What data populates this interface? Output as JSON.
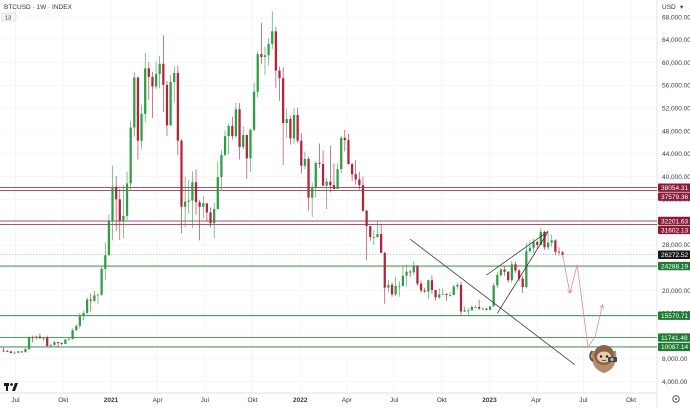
{
  "header": {
    "title": "BTCUSD · 1W · INDEX",
    "indicator_badge": "13",
    "currency": "USD"
  },
  "colors": {
    "bull": "#2e9e44",
    "bear": "#b3243a",
    "resistance_zone": "#8b1d3a",
    "support_line": "#1f7a33",
    "trendline": "#3a3a3a",
    "projection": "#e38a9a",
    "current_price": "#1a1a1a"
  },
  "icons": {
    "logo": "tradingview-logo-icon",
    "settings": "gear-icon",
    "mascot": "sloth-icon"
  },
  "chart_data": {
    "type": "candlestick",
    "title": "BTCUSD · 1W · INDEX",
    "x_ticks": [
      "Jul",
      "Okt",
      "2021",
      "Apr",
      "Jul",
      "Okt",
      "2022",
      "Apr",
      "Jul",
      "Okt",
      "2023",
      "Apr",
      "Jul",
      "Okt"
    ],
    "x_tick_dates": [
      "2020-07-01",
      "2020-10-01",
      "2021-01-01",
      "2021-04-01",
      "2021-07-01",
      "2021-10-01",
      "2022-01-01",
      "2022-04-01",
      "2022-07-01",
      "2022-10-01",
      "2023-01-01",
      "2023-04-01",
      "2023-07-01",
      "2023-10-01"
    ],
    "y_ticks": [
      4000,
      8000,
      12000,
      16000,
      20000,
      24000,
      28000,
      32000,
      36000,
      40000,
      44000,
      48000,
      52000,
      56000,
      60000,
      64000,
      68000
    ],
    "y_unit": "USD",
    "ylim": [
      2000,
      71000
    ],
    "price_labels": [
      {
        "value": "38054.31",
        "style": "resistance"
      },
      {
        "value": "37579.36",
        "style": "resistance"
      },
      {
        "value": "32201.63",
        "style": "resistance"
      },
      {
        "value": "31602.13",
        "style": "resistance"
      },
      {
        "value": "26272.52",
        "style": "current"
      },
      {
        "value": "24288.19",
        "style": "support"
      },
      {
        "value": "15570.71",
        "style": "support"
      },
      {
        "value": "11741.48",
        "style": "support"
      },
      {
        "value": "10087.14",
        "style": "support"
      }
    ],
    "horizontal_levels": [
      38054.31,
      37579.36,
      32201.63,
      31602.13,
      24288.19,
      15570.71,
      11741.48,
      10087.14
    ],
    "current_price": 26272.52,
    "candles": [
      [
        "2020-06-08",
        9450,
        9990,
        9150,
        9380
      ],
      [
        "2020-06-15",
        9380,
        9560,
        9170,
        9300
      ],
      [
        "2020-06-22",
        9300,
        9390,
        8950,
        9020
      ],
      [
        "2020-06-29",
        9020,
        9310,
        8900,
        9070
      ],
      [
        "2020-07-06",
        9070,
        9450,
        9060,
        9300
      ],
      [
        "2020-07-13",
        9300,
        9330,
        9050,
        9170
      ],
      [
        "2020-07-20",
        9170,
        9930,
        9140,
        9700
      ],
      [
        "2020-07-27",
        9700,
        12000,
        9650,
        11800
      ],
      [
        "2020-08-03",
        11800,
        12100,
        10900,
        11680
      ],
      [
        "2020-08-10",
        11680,
        12100,
        11300,
        11900
      ],
      [
        "2020-08-17",
        11900,
        12470,
        11450,
        11640
      ],
      [
        "2020-08-24",
        11640,
        11850,
        11130,
        11700
      ],
      [
        "2020-08-31",
        11700,
        12080,
        10100,
        10280
      ],
      [
        "2020-09-07",
        10280,
        10650,
        9900,
        10440
      ],
      [
        "2020-09-14",
        10440,
        11100,
        10300,
        10940
      ],
      [
        "2020-09-21",
        10940,
        10990,
        10150,
        10760
      ],
      [
        "2020-09-28",
        10760,
        10930,
        10370,
        10600
      ],
      [
        "2020-10-05",
        10600,
        11480,
        10550,
        11370
      ],
      [
        "2020-10-12",
        11370,
        11720,
        11230,
        11500
      ],
      [
        "2020-10-19",
        11500,
        13350,
        11400,
        13030
      ],
      [
        "2020-10-26",
        13030,
        14000,
        12900,
        13800
      ],
      [
        "2020-11-02",
        13800,
        15950,
        13300,
        15480
      ],
      [
        "2020-11-09",
        15480,
        16480,
        14800,
        16050
      ],
      [
        "2020-11-16",
        16050,
        18800,
        15900,
        18400
      ],
      [
        "2020-11-23",
        18400,
        19500,
        16300,
        18200
      ],
      [
        "2020-11-30",
        18200,
        19900,
        18000,
        19150
      ],
      [
        "2020-12-07",
        19150,
        19400,
        17600,
        19270
      ],
      [
        "2020-12-14",
        19270,
        24300,
        19000,
        23800
      ],
      [
        "2020-12-21",
        23800,
        28400,
        21800,
        26200
      ],
      [
        "2020-12-28",
        26200,
        33300,
        26000,
        32200
      ],
      [
        "2021-01-04",
        32200,
        41900,
        28800,
        38200
      ],
      [
        "2021-01-11",
        38200,
        40100,
        30400,
        36000
      ],
      [
        "2021-01-18",
        36000,
        37800,
        28900,
        32200
      ],
      [
        "2021-01-25",
        32200,
        38500,
        29200,
        33100
      ],
      [
        "2021-02-01",
        33100,
        40900,
        32300,
        38800
      ],
      [
        "2021-02-08",
        38800,
        49700,
        37500,
        48600
      ],
      [
        "2021-02-15",
        48600,
        58300,
        47000,
        57400
      ],
      [
        "2021-02-22",
        57400,
        57500,
        43000,
        46300
      ],
      [
        "2021-03-01",
        46300,
        52600,
        44900,
        51000
      ],
      [
        "2021-03-08",
        51000,
        61700,
        49500,
        59000
      ],
      [
        "2021-03-15",
        59000,
        60100,
        53500,
        57500
      ],
      [
        "2021-03-22",
        57500,
        58400,
        50300,
        55800
      ],
      [
        "2021-03-29",
        55800,
        60200,
        55400,
        58000
      ],
      [
        "2021-04-05",
        58000,
        61200,
        55500,
        59800
      ],
      [
        "2021-04-12",
        59800,
        64800,
        51300,
        56100
      ],
      [
        "2021-04-19",
        56100,
        56800,
        47100,
        49000
      ],
      [
        "2021-04-26",
        49000,
        57900,
        48900,
        56600
      ],
      [
        "2021-05-03",
        56600,
        59400,
        53000,
        58200
      ],
      [
        "2021-05-10",
        58200,
        59500,
        43800,
        46300
      ],
      [
        "2021-05-17",
        46300,
        46600,
        30000,
        34700
      ],
      [
        "2021-05-24",
        34700,
        40000,
        31100,
        35600
      ],
      [
        "2021-05-31",
        35600,
        39400,
        33500,
        35800
      ],
      [
        "2021-06-07",
        35800,
        40900,
        31000,
        39000
      ],
      [
        "2021-06-14",
        39000,
        41300,
        33300,
        35500
      ],
      [
        "2021-06-21",
        35500,
        35900,
        28800,
        34700
      ],
      [
        "2021-06-28",
        34700,
        36600,
        32700,
        35300
      ],
      [
        "2021-07-05",
        35300,
        35000,
        32100,
        33700
      ],
      [
        "2021-07-12",
        33700,
        34600,
        31100,
        31800
      ],
      [
        "2021-07-19",
        31800,
        35400,
        29200,
        34300
      ],
      [
        "2021-07-26",
        34300,
        42600,
        34200,
        39900
      ],
      [
        "2021-08-02",
        39900,
        44700,
        37600,
        43800
      ],
      [
        "2021-08-09",
        43800,
        48100,
        43600,
        47100
      ],
      [
        "2021-08-16",
        47100,
        49300,
        43900,
        48900
      ],
      [
        "2021-08-23",
        48900,
        50500,
        46500,
        47100
      ],
      [
        "2021-08-30",
        47100,
        52900,
        46700,
        51800
      ],
      [
        "2021-09-06",
        51800,
        52900,
        43000,
        45200
      ],
      [
        "2021-09-13",
        45200,
        48800,
        44800,
        47300
      ],
      [
        "2021-09-20",
        47300,
        47400,
        39600,
        43200
      ],
      [
        "2021-09-27",
        43200,
        48400,
        40800,
        48200
      ],
      [
        "2021-10-04",
        48200,
        56500,
        48000,
        54900
      ],
      [
        "2021-10-11",
        54900,
        62000,
        53900,
        61500
      ],
      [
        "2021-10-18",
        61500,
        67000,
        59700,
        61000
      ],
      [
        "2021-10-25",
        61000,
        62800,
        57800,
        61300
      ],
      [
        "2021-11-01",
        61300,
        64300,
        59500,
        63300
      ],
      [
        "2021-11-08",
        63300,
        69000,
        62400,
        65500
      ],
      [
        "2021-11-15",
        65500,
        66300,
        55600,
        58600
      ],
      [
        "2021-11-22",
        58600,
        59300,
        53300,
        57300
      ],
      [
        "2021-11-29",
        57300,
        59200,
        42000,
        49400
      ],
      [
        "2021-12-06",
        49400,
        51900,
        46800,
        50100
      ],
      [
        "2021-12-13",
        50100,
        50700,
        45600,
        46700
      ],
      [
        "2021-12-20",
        46700,
        52000,
        45700,
        50800
      ],
      [
        "2021-12-27",
        50800,
        52100,
        45900,
        46300
      ],
      [
        "2022-01-03",
        46300,
        47600,
        40500,
        41900
      ],
      [
        "2022-01-10",
        41900,
        44400,
        41300,
        43100
      ],
      [
        "2022-01-17",
        43100,
        43500,
        34000,
        36300
      ],
      [
        "2022-01-24",
        36300,
        38900,
        32900,
        38100
      ],
      [
        "2022-01-31",
        38100,
        42700,
        36300,
        42400
      ],
      [
        "2022-02-07",
        42400,
        45800,
        41500,
        42200
      ],
      [
        "2022-02-14",
        42200,
        44600,
        38700,
        38400
      ],
      [
        "2022-02-21",
        38400,
        39800,
        34300,
        39100
      ],
      [
        "2022-02-28",
        39100,
        45400,
        37200,
        38500
      ],
      [
        "2022-03-07",
        38500,
        42300,
        37900,
        37800
      ],
      [
        "2022-03-14",
        37800,
        42300,
        38100,
        41300
      ],
      [
        "2022-03-21",
        41300,
        47100,
        40600,
        46800
      ],
      [
        "2022-03-28",
        46800,
        48200,
        44400,
        46400
      ],
      [
        "2022-04-04",
        46400,
        47500,
        42100,
        42200
      ],
      [
        "2022-04-11",
        42200,
        42400,
        39200,
        40400
      ],
      [
        "2022-04-18",
        40400,
        42900,
        38600,
        39500
      ],
      [
        "2022-04-25",
        39500,
        40800,
        37700,
        38500
      ],
      [
        "2022-05-02",
        38500,
        40000,
        33800,
        34000
      ],
      [
        "2022-05-09",
        34000,
        34200,
        25400,
        31300
      ],
      [
        "2022-05-16",
        31300,
        31300,
        28700,
        29400
      ],
      [
        "2022-05-23",
        29400,
        30600,
        28000,
        29400
      ],
      [
        "2022-05-30",
        29400,
        32200,
        29300,
        29900
      ],
      [
        "2022-06-06",
        29900,
        31600,
        26700,
        26600
      ],
      [
        "2022-06-13",
        26600,
        26800,
        17600,
        20500
      ],
      [
        "2022-06-20",
        20500,
        21800,
        19700,
        21000
      ],
      [
        "2022-06-27",
        21000,
        21400,
        18900,
        19300
      ],
      [
        "2022-07-04",
        19300,
        22400,
        19000,
        20800
      ],
      [
        "2022-07-11",
        20800,
        21600,
        18900,
        20800
      ],
      [
        "2022-07-18",
        20800,
        24200,
        20800,
        22600
      ],
      [
        "2022-07-25",
        22600,
        24500,
        20700,
        23300
      ],
      [
        "2022-08-01",
        23300,
        23600,
        22400,
        23200
      ],
      [
        "2022-08-08",
        23200,
        25200,
        22700,
        24400
      ],
      [
        "2022-08-15",
        24400,
        24400,
        20800,
        21200
      ],
      [
        "2022-08-22",
        21200,
        21800,
        19600,
        20000
      ],
      [
        "2022-08-29",
        20000,
        20500,
        19600,
        19800
      ],
      [
        "2022-09-05",
        19800,
        21900,
        18600,
        21800
      ],
      [
        "2022-09-12",
        21800,
        22700,
        19400,
        20100
      ],
      [
        "2022-09-19",
        20100,
        19900,
        18200,
        18800
      ],
      [
        "2022-09-26",
        18800,
        20400,
        18500,
        19300
      ],
      [
        "2022-10-03",
        19300,
        20400,
        19300,
        19400
      ],
      [
        "2022-10-10",
        19400,
        19500,
        18200,
        19200
      ],
      [
        "2022-10-17",
        19200,
        19700,
        18900,
        19200
      ],
      [
        "2022-10-24",
        19200,
        21000,
        19200,
        20700
      ],
      [
        "2022-10-31",
        20700,
        21400,
        20200,
        21000
      ],
      [
        "2022-11-07",
        21000,
        21500,
        15600,
        16300
      ],
      [
        "2022-11-14",
        16300,
        17200,
        16200,
        16500
      ],
      [
        "2022-11-21",
        16500,
        16900,
        15500,
        16500
      ],
      [
        "2022-11-28",
        16500,
        17400,
        16500,
        17100
      ],
      [
        "2022-12-05",
        17100,
        17400,
        16900,
        17100
      ],
      [
        "2022-12-12",
        17100,
        18400,
        16600,
        16800
      ],
      [
        "2022-12-19",
        16800,
        17000,
        16600,
        16800
      ],
      [
        "2022-12-26",
        16800,
        16900,
        16500,
        16600
      ],
      [
        "2023-01-02",
        16600,
        17300,
        16600,
        17200
      ],
      [
        "2023-01-09",
        17200,
        21300,
        17200,
        20900
      ],
      [
        "2023-01-16",
        20900,
        23300,
        20400,
        22700
      ],
      [
        "2023-01-23",
        22700,
        23900,
        22400,
        23700
      ],
      [
        "2023-01-30",
        23700,
        24200,
        22600,
        23300
      ],
      [
        "2023-02-06",
        23300,
        23400,
        21400,
        21800
      ],
      [
        "2023-02-13",
        21800,
        25200,
        21400,
        24600
      ],
      [
        "2023-02-20",
        24600,
        25100,
        23100,
        23500
      ],
      [
        "2023-02-27",
        23500,
        23800,
        21600,
        22100
      ],
      [
        "2023-03-06",
        22100,
        22600,
        19600,
        20600
      ],
      [
        "2023-03-13",
        20600,
        28300,
        20400,
        26900
      ],
      [
        "2023-03-20",
        26900,
        28800,
        26600,
        27500
      ],
      [
        "2023-03-27",
        27500,
        29100,
        26600,
        28500
      ],
      [
        "2023-04-03",
        28500,
        28800,
        27200,
        28000
      ],
      [
        "2023-04-10",
        28000,
        31000,
        27900,
        30300
      ],
      [
        "2023-04-17",
        30300,
        30500,
        27100,
        27600
      ],
      [
        "2023-04-24",
        27600,
        30000,
        27100,
        28400
      ],
      [
        "2023-05-01",
        28400,
        29800,
        27700,
        28800
      ],
      [
        "2023-05-08",
        28800,
        29000,
        26200,
        26800
      ],
      [
        "2023-05-15",
        26800,
        27600,
        26300,
        26700
      ],
      [
        "2023-05-22",
        26700,
        26900,
        25900,
        26300
      ]
    ],
    "drawings": {
      "trendline_down": {
        "from": [
          "2022-08-01",
          29000
        ],
        "to": [
          "2023-06-14",
          7000
        ]
      },
      "wedge_lower": {
        "from": [
          "2023-01-16",
          16000
        ],
        "to": [
          "2023-04-24",
          30300
        ]
      },
      "wedge_upper": {
        "from": [
          "2022-12-26",
          22700
        ],
        "to": [
          "2023-04-24",
          30400
        ]
      },
      "projection_path": [
        [
          "2023-05-22",
          26300
        ],
        [
          "2023-06-05",
          19500
        ],
        [
          "2023-06-19",
          24500
        ],
        [
          "2023-07-10",
          10000
        ],
        [
          "2023-07-24",
          12000
        ],
        [
          "2023-08-07",
          17500
        ]
      ]
    }
  }
}
